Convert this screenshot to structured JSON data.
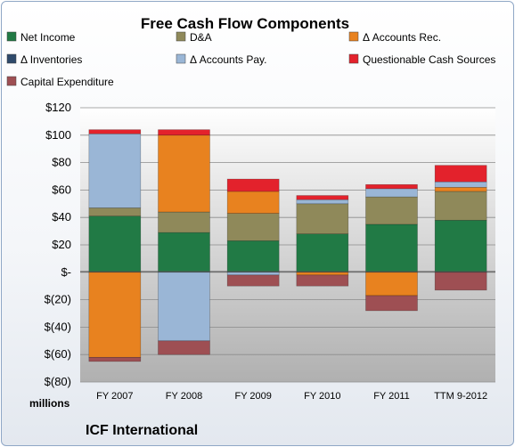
{
  "chart_data": {
    "type": "bar",
    "stacked": true,
    "title": "Free Cash Flow Components",
    "unit_label": "millions",
    "source_label": "ICF International",
    "categories": [
      "FY 2007",
      "FY 2008",
      "FY 2009",
      "FY 2010",
      "FY 2011",
      "TTM 9-2012"
    ],
    "ylim": [
      -80,
      120
    ],
    "y_ticks": [
      {
        "value": 120,
        "label": "$120"
      },
      {
        "value": 100,
        "label": "$100"
      },
      {
        "value": 80,
        "label": "$80"
      },
      {
        "value": 60,
        "label": "$60"
      },
      {
        "value": 40,
        "label": "$40"
      },
      {
        "value": 20,
        "label": "$20"
      },
      {
        "value": 0,
        "label": "$-"
      },
      {
        "value": -20,
        "label": "$(20)"
      },
      {
        "value": -40,
        "label": "$(40)"
      },
      {
        "value": -60,
        "label": "$(60)"
      },
      {
        "value": -80,
        "label": "$(80)"
      }
    ],
    "grid": true,
    "legend_position": "top",
    "series": [
      {
        "name": "Net Income",
        "color": "#217a45",
        "values": [
          41,
          29,
          23,
          28,
          35,
          38
        ]
      },
      {
        "name": "D&A",
        "color": "#8f895a",
        "values": [
          6,
          15,
          20,
          22,
          20,
          21
        ]
      },
      {
        "name": "Δ Accounts Rec.",
        "color": "#e8821f",
        "values": [
          -62,
          56,
          16,
          -2,
          -17,
          3
        ]
      },
      {
        "name": "Δ Inventories",
        "color": "#2f4a6b",
        "values": [
          0,
          0,
          0,
          0,
          0,
          0
        ]
      },
      {
        "name": "Δ Accounts Pay.",
        "color": "#9ab6d6",
        "values": [
          54,
          -50,
          -2,
          3,
          6,
          4
        ]
      },
      {
        "name": "Questionable Cash Sources",
        "color": "#e3222c",
        "values": [
          3,
          4,
          9,
          3,
          3,
          12
        ]
      },
      {
        "name": "Capital Expenditure",
        "color": "#9e4f53",
        "values": [
          -3,
          -10,
          -8,
          -8,
          -11,
          -13
        ]
      }
    ]
  }
}
